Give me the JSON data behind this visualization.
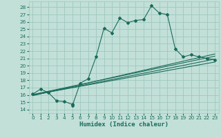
{
  "xlabel": "Humidex (Indice chaleur)",
  "bg_color": "#c2e0d8",
  "grid_color": "#9dc8be",
  "line_color": "#1a6b5a",
  "xlim": [
    -0.5,
    23.5
  ],
  "ylim": [
    13.5,
    28.8
  ],
  "xticks": [
    0,
    1,
    2,
    3,
    4,
    5,
    6,
    7,
    8,
    9,
    10,
    11,
    12,
    13,
    14,
    15,
    16,
    17,
    18,
    19,
    20,
    21,
    22,
    23
  ],
  "yticks": [
    14,
    15,
    16,
    17,
    18,
    19,
    20,
    21,
    22,
    23,
    24,
    25,
    26,
    27,
    28
  ],
  "main_x": [
    0,
    1,
    2,
    3,
    4,
    5,
    5,
    6,
    7,
    8,
    9,
    10,
    11,
    12,
    13,
    14,
    15,
    16,
    17,
    18,
    19,
    20,
    21,
    22,
    23
  ],
  "main_y": [
    16.1,
    16.8,
    16.3,
    15.2,
    15.1,
    14.7,
    14.5,
    17.6,
    18.2,
    21.2,
    25.1,
    24.5,
    26.5,
    25.9,
    26.2,
    26.3,
    28.2,
    27.2,
    27.0,
    22.3,
    21.2,
    21.5,
    21.2,
    21.0,
    20.8
  ],
  "line1_y_start": 16.05,
  "line1_y_end": 21.3,
  "line2_y_start": 16.0,
  "line2_y_end": 20.5,
  "line3_y_start": 15.95,
  "line3_y_end": 20.9,
  "line4_y_start": 15.9,
  "line4_y_end": 21.6,
  "xlabel_fontsize": 6.5,
  "tick_fontsize": 5.2
}
